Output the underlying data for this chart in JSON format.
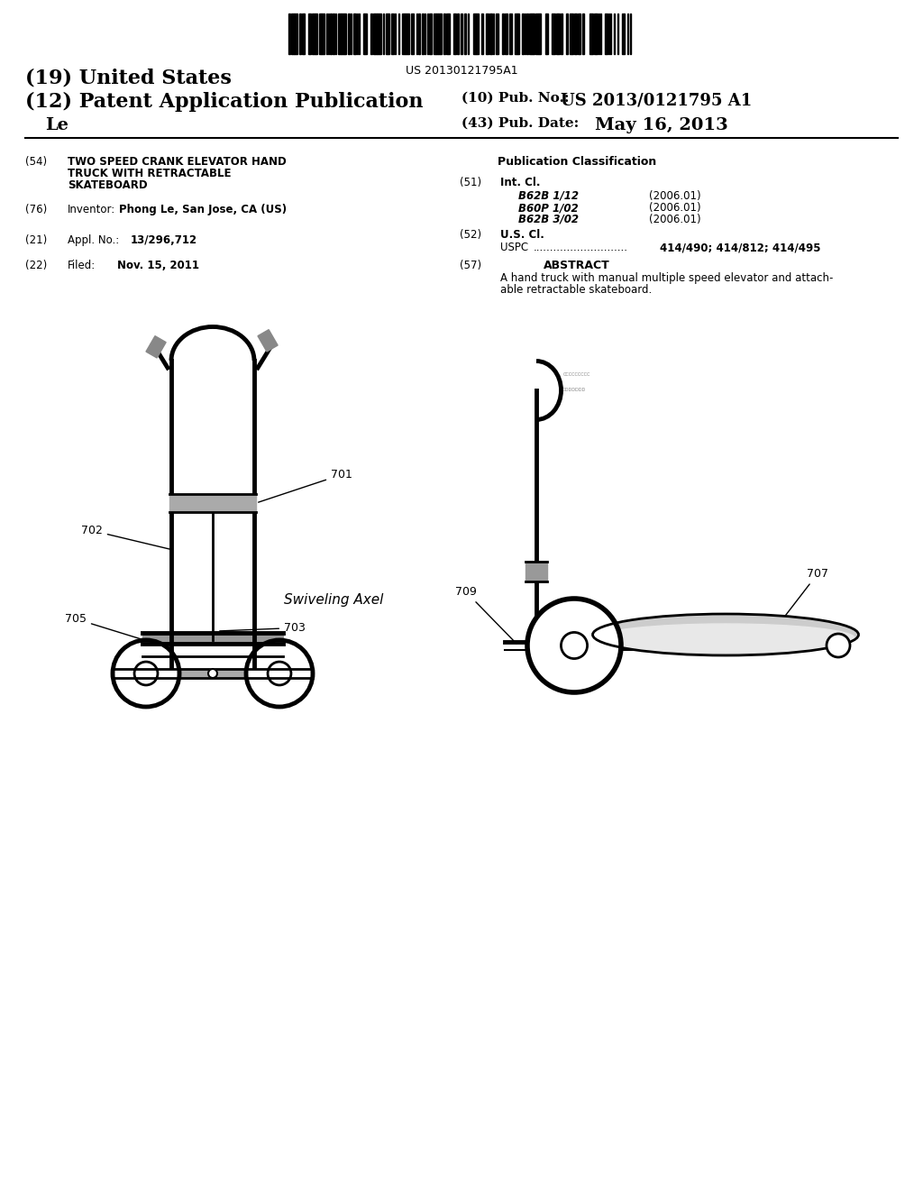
{
  "background_color": "#ffffff",
  "barcode_text": "US 20130121795A1",
  "title_19": "(19) United States",
  "title_12": "(12) Patent Application Publication",
  "inventor_last": "Le",
  "pub_no_label": "(10) Pub. No.:",
  "pub_no_value": "US 2013/0121795 A1",
  "pub_date_label": "(43) Pub. Date:",
  "pub_date_value": "May 16, 2013",
  "field_54_label": "(54)",
  "field_54_text": [
    "TWO SPEED CRANK ELEVATOR HAND",
    "TRUCK WITH RETRACTABLE",
    "SKATEBOARD"
  ],
  "field_76_label": "(76)",
  "field_76_text": "Inventor:",
  "field_76_value": "Phong Le, San Jose, CA (US)",
  "field_21_label": "(21)",
  "field_21_text": "Appl. No.:",
  "field_21_value": "13/296,712",
  "field_22_label": "(22)",
  "field_22_text": "Filed:",
  "field_22_value": "Nov. 15, 2011",
  "pub_class_title": "Publication Classification",
  "field_51_label": "(51)",
  "field_51_text": "Int. Cl.",
  "class_b62b_112": "B62B 1/12",
  "class_b62b_112_year": "(2006.01)",
  "class_b60p_102": "B60P 1/02",
  "class_b60p_102_year": "(2006.01)",
  "class_b62b_302": "B62B 3/02",
  "class_b62b_302_year": "(2006.01)",
  "field_52_label": "(52)",
  "field_52_text": "U.S. Cl.",
  "uspc_label": "USPC",
  "uspc_value": "414/490; 414/812; 414/495",
  "field_57_label": "(57)",
  "field_57_title": "ABSTRACT",
  "abstract_text": "A hand truck with manual multiple speed elevator and attach-\nable retractable skateboard.",
  "label_701": "701",
  "label_702": "702",
  "label_703": "703",
  "label_705": "705",
  "label_707": "707",
  "label_709": "709",
  "swiveling_axel": "Swiveling Axel"
}
